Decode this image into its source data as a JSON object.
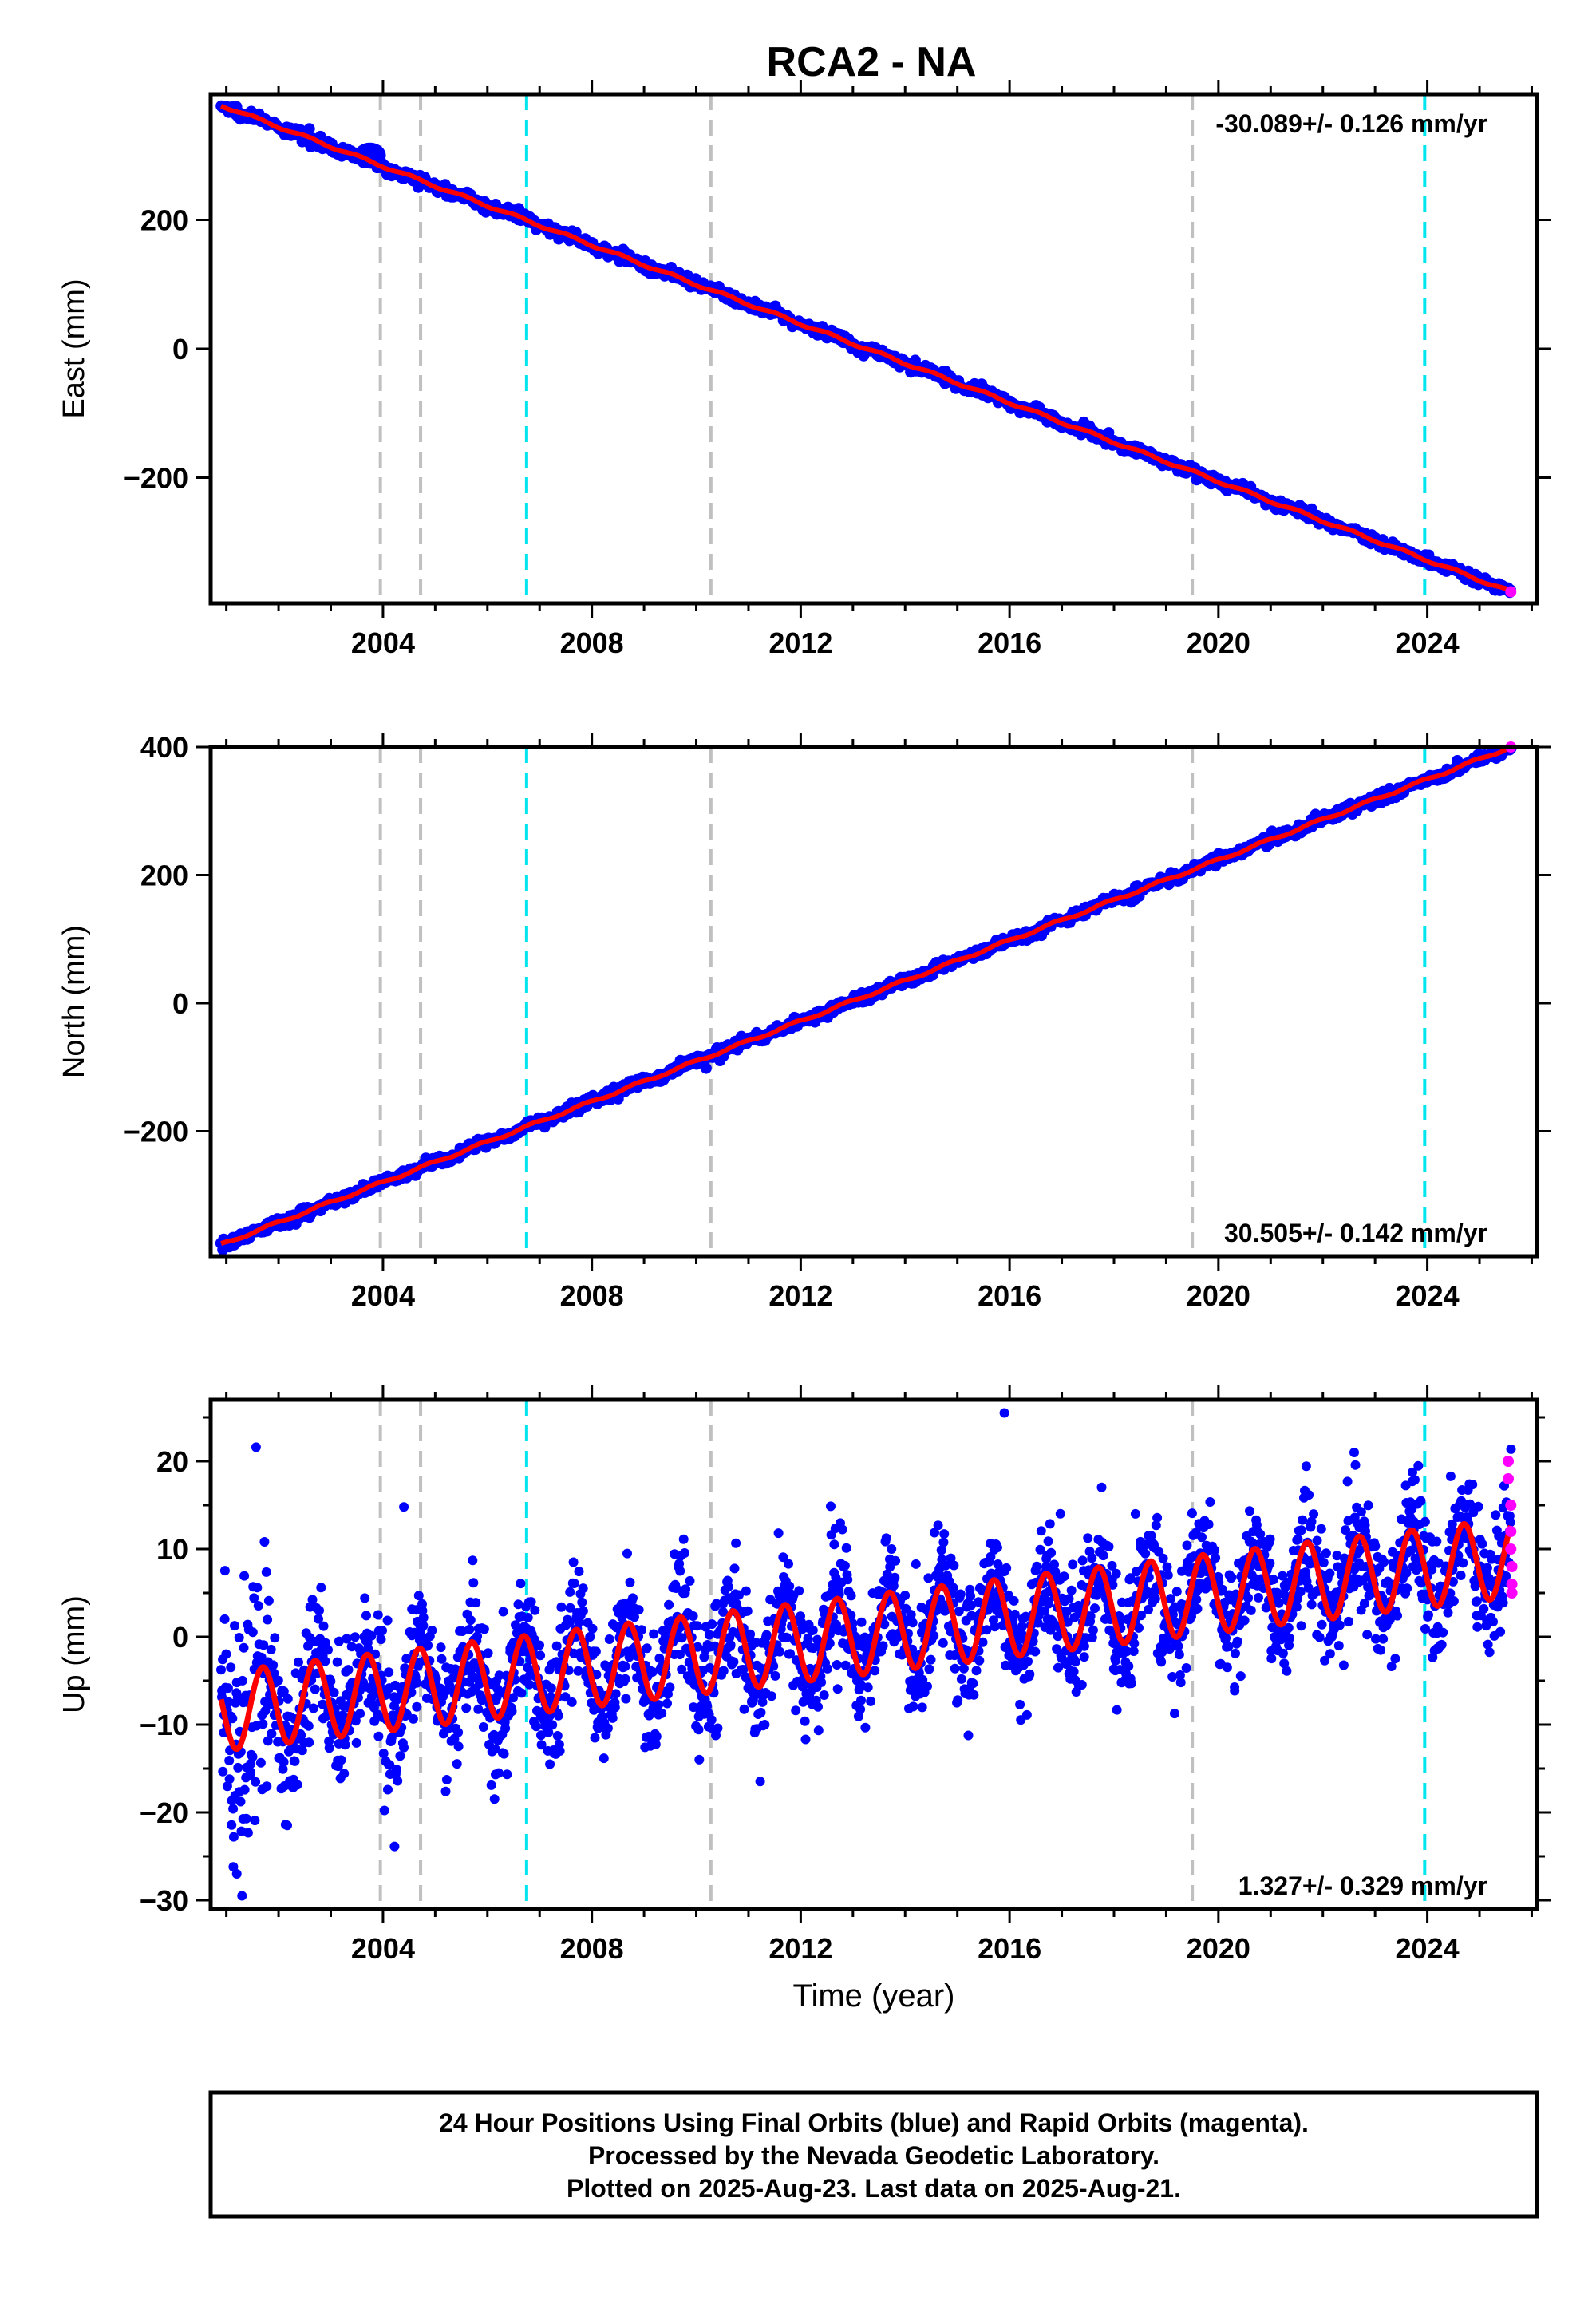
{
  "title": "RCA2 - NA",
  "colors": {
    "final_orbits": "#0000ff",
    "rapid_orbits": "#ff00ff",
    "model": "#ff0000",
    "event_gray": "#c0c0c0",
    "event_cyan": "#00e5ee",
    "frame": "#000000"
  },
  "chart_data": [
    {
      "type": "scatter",
      "ylabel": "East (mm)",
      "xlabel": "",
      "rate_label": "-30.089+/- 0.126 mm/yr",
      "rate_position": "top-right",
      "xlim": [
        2000.7,
        2026.1
      ],
      "ylim": [
        -395,
        395
      ],
      "xticks": [
        2004,
        2008,
        2012,
        2016,
        2020,
        2024
      ],
      "yticks": [
        -200,
        0,
        200
      ],
      "model": {
        "start": [
          2000.9,
          378
        ],
        "end": [
          2025.6,
          -377
        ],
        "annual_amp": 2,
        "phase": 0.3
      },
      "noise": 4,
      "events_gray": [
        2003.95,
        2004.72,
        2010.28,
        2019.5
      ],
      "events_cyan": [
        2006.75,
        2023.95
      ],
      "rapid_points": [
        [
          2025.6,
          -377
        ]
      ],
      "grid": false
    },
    {
      "type": "scatter",
      "ylabel": "North (mm)",
      "xlabel": "",
      "rate_label": "30.505+/- 0.142 mm/yr",
      "rate_position": "bottom-right",
      "xlim": [
        2000.7,
        2026.1
      ],
      "ylim": [
        -395,
        400
      ],
      "xticks": [
        2004,
        2008,
        2012,
        2016,
        2020,
        2024
      ],
      "yticks": [
        -200,
        0,
        200,
        400
      ],
      "model": {
        "start": [
          2000.9,
          -377
        ],
        "end": [
          2025.6,
          400
        ],
        "annual_amp": 2,
        "phase": 0.6
      },
      "noise": 4,
      "events_gray": [
        2003.95,
        2004.72,
        2010.28,
        2019.5
      ],
      "events_cyan": [
        2006.75,
        2023.95
      ],
      "rapid_points": [
        [
          2025.6,
          400
        ]
      ],
      "grid": false
    },
    {
      "type": "scatter",
      "ylabel": "Up (mm)",
      "xlabel": "Time (year)",
      "rate_label": "1.327+/- 0.329 mm/yr",
      "rate_position": "bottom-right",
      "xlim": [
        2000.7,
        2026.1
      ],
      "ylim": [
        -31,
        27
      ],
      "xticks": [
        2004,
        2008,
        2012,
        2016,
        2020,
        2024
      ],
      "yticks": [
        -30,
        -20,
        -10,
        0,
        10,
        20
      ],
      "model": {
        "start": [
          2000.9,
          -8.5
        ],
        "end": [
          2025.6,
          9
        ],
        "annual_amp": 4.5,
        "phase": 0.45
      },
      "noise": 3.5,
      "events_gray": [
        2003.95,
        2004.72,
        2010.28,
        2019.5
      ],
      "events_cyan": [
        2006.75,
        2023.95
      ],
      "rapid_points": [
        [
          2025.55,
          20
        ],
        [
          2025.55,
          18
        ],
        [
          2025.6,
          15
        ],
        [
          2025.6,
          12
        ],
        [
          2025.6,
          10
        ],
        [
          2025.62,
          8
        ],
        [
          2025.62,
          6
        ],
        [
          2025.62,
          5
        ]
      ],
      "outlier_points": [
        [
          2015.9,
          25.5
        ],
        [
          2001.3,
          -29.5
        ],
        [
          2001.2,
          -27
        ],
        [
          2004.4,
          14.8
        ],
        [
          2022.6,
          21
        ]
      ],
      "grid": false
    }
  ],
  "footer": {
    "line1": "24 Hour Positions Using Final Orbits (blue) and Rapid Orbits (magenta).",
    "line2": "Processed by the Nevada Geodetic Laboratory.",
    "line3": "Plotted on 2025-Aug-23. Last data on 2025-Aug-21."
  }
}
